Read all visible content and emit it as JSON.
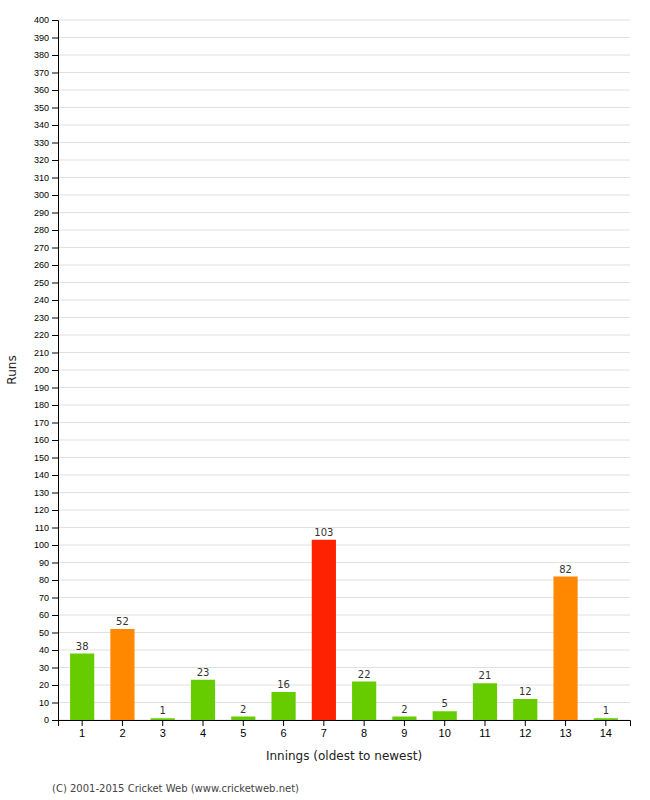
{
  "chart_data": {
    "type": "bar",
    "categories": [
      "1",
      "2",
      "3",
      "4",
      "5",
      "6",
      "7",
      "8",
      "9",
      "10",
      "11",
      "12",
      "13",
      "14"
    ],
    "values": [
      38,
      52,
      1,
      23,
      2,
      16,
      103,
      22,
      2,
      5,
      21,
      12,
      82,
      1
    ],
    "colors": [
      "#66cc00",
      "#ff8800",
      "#66cc00",
      "#66cc00",
      "#66cc00",
      "#66cc00",
      "#ff2200",
      "#66cc00",
      "#66cc00",
      "#66cc00",
      "#66cc00",
      "#66cc00",
      "#ff8800",
      "#66cc00"
    ],
    "x_label": "Innings (oldest to newest)",
    "y_label": "Runs",
    "ylim": [
      0,
      400
    ],
    "yticks": [
      0,
      10,
      20,
      30,
      40,
      50,
      60,
      70,
      80,
      90,
      100,
      110,
      120,
      130,
      140,
      150,
      160,
      170,
      180,
      190,
      200,
      210,
      220,
      230,
      240,
      250,
      260,
      270,
      280,
      290,
      300,
      310,
      320,
      330,
      340,
      350,
      360,
      370,
      380,
      390,
      400
    ],
    "grid": true,
    "data_labels": true,
    "annotations": [
      "(C) 2001-2015 Cricket Web (www.cricketweb.net)"
    ]
  }
}
